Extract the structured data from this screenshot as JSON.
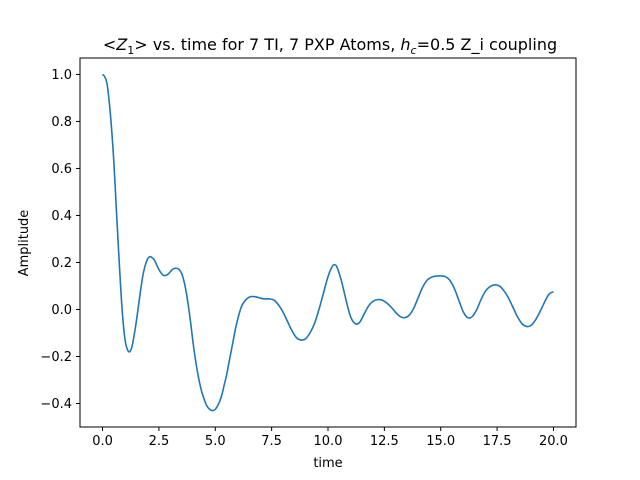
{
  "chart_data": {
    "type": "line",
    "title_parts": {
      "z_open": "<",
      "z_var": "Z",
      "z_sub": "1",
      "z_close": ">",
      "mid": " vs. time for 7 TI, 7 PXP Atoms, ",
      "h_var": "h",
      "h_sub": "c",
      "tail": "=0.5 Z_i coupling"
    },
    "xlabel": "time",
    "ylabel": "Amplitude",
    "xlim": [
      -1.0,
      21.0
    ],
    "ylim": [
      -0.5,
      1.07
    ],
    "xticks": [
      0.0,
      2.5,
      5.0,
      7.5,
      10.0,
      12.5,
      15.0,
      17.5,
      20.0
    ],
    "xtick_labels": [
      "0.0",
      "2.5",
      "5.0",
      "7.5",
      "10.0",
      "12.5",
      "15.0",
      "17.5",
      "20.0"
    ],
    "yticks": [
      -0.4,
      -0.2,
      0.0,
      0.2,
      0.4,
      0.6,
      0.8,
      1.0
    ],
    "ytick_labels": [
      "−0.4",
      "−0.2",
      "0.0",
      "0.2",
      "0.4",
      "0.6",
      "0.8",
      "1.0"
    ],
    "grid": false,
    "series": [
      {
        "color": "#1f77b4",
        "points": [
          [
            0.0,
            1.0
          ],
          [
            0.1,
            0.99
          ],
          [
            0.2,
            0.96
          ],
          [
            0.3,
            0.88
          ],
          [
            0.4,
            0.77
          ],
          [
            0.5,
            0.63
          ],
          [
            0.6,
            0.45
          ],
          [
            0.7,
            0.27
          ],
          [
            0.8,
            0.1
          ],
          [
            0.9,
            -0.04
          ],
          [
            1.0,
            -0.13
          ],
          [
            1.1,
            -0.17
          ],
          [
            1.2,
            -0.18
          ],
          [
            1.3,
            -0.16
          ],
          [
            1.4,
            -0.11
          ],
          [
            1.5,
            -0.05
          ],
          [
            1.6,
            0.02
          ],
          [
            1.7,
            0.09
          ],
          [
            1.8,
            0.15
          ],
          [
            1.9,
            0.19
          ],
          [
            2.0,
            0.215
          ],
          [
            2.1,
            0.225
          ],
          [
            2.2,
            0.22
          ],
          [
            2.3,
            0.21
          ],
          [
            2.4,
            0.19
          ],
          [
            2.5,
            0.17
          ],
          [
            2.6,
            0.155
          ],
          [
            2.7,
            0.145
          ],
          [
            2.8,
            0.145
          ],
          [
            2.9,
            0.15
          ],
          [
            3.0,
            0.16
          ],
          [
            3.1,
            0.17
          ],
          [
            3.2,
            0.175
          ],
          [
            3.3,
            0.175
          ],
          [
            3.4,
            0.17
          ],
          [
            3.5,
            0.155
          ],
          [
            3.6,
            0.125
          ],
          [
            3.7,
            0.08
          ],
          [
            3.8,
            0.02
          ],
          [
            3.9,
            -0.05
          ],
          [
            4.0,
            -0.13
          ],
          [
            4.1,
            -0.2
          ],
          [
            4.2,
            -0.26
          ],
          [
            4.3,
            -0.31
          ],
          [
            4.4,
            -0.35
          ],
          [
            4.5,
            -0.38
          ],
          [
            4.6,
            -0.405
          ],
          [
            4.7,
            -0.42
          ],
          [
            4.8,
            -0.428
          ],
          [
            4.9,
            -0.43
          ],
          [
            5.0,
            -0.425
          ],
          [
            5.1,
            -0.41
          ],
          [
            5.2,
            -0.39
          ],
          [
            5.3,
            -0.36
          ],
          [
            5.4,
            -0.32
          ],
          [
            5.5,
            -0.28
          ],
          [
            5.6,
            -0.23
          ],
          [
            5.7,
            -0.18
          ],
          [
            5.8,
            -0.13
          ],
          [
            5.9,
            -0.08
          ],
          [
            6.0,
            -0.04
          ],
          [
            6.1,
            -0.005
          ],
          [
            6.2,
            0.02
          ],
          [
            6.3,
            0.035
          ],
          [
            6.4,
            0.045
          ],
          [
            6.5,
            0.052
          ],
          [
            6.6,
            0.055
          ],
          [
            6.8,
            0.054
          ],
          [
            7.0,
            0.048
          ],
          [
            7.2,
            0.045
          ],
          [
            7.4,
            0.045
          ],
          [
            7.6,
            0.04
          ],
          [
            7.8,
            0.02
          ],
          [
            8.0,
            -0.01
          ],
          [
            8.2,
            -0.05
          ],
          [
            8.4,
            -0.09
          ],
          [
            8.6,
            -0.12
          ],
          [
            8.8,
            -0.13
          ],
          [
            9.0,
            -0.125
          ],
          [
            9.2,
            -0.1
          ],
          [
            9.4,
            -0.06
          ],
          [
            9.6,
            0.0
          ],
          [
            9.8,
            0.07
          ],
          [
            10.0,
            0.14
          ],
          [
            10.2,
            0.185
          ],
          [
            10.3,
            0.19
          ],
          [
            10.4,
            0.18
          ],
          [
            10.6,
            0.12
          ],
          [
            10.8,
            0.04
          ],
          [
            11.0,
            -0.03
          ],
          [
            11.2,
            -0.06
          ],
          [
            11.4,
            -0.055
          ],
          [
            11.6,
            -0.02
          ],
          [
            11.8,
            0.015
          ],
          [
            12.0,
            0.035
          ],
          [
            12.2,
            0.042
          ],
          [
            12.4,
            0.04
          ],
          [
            12.6,
            0.028
          ],
          [
            12.8,
            0.01
          ],
          [
            13.0,
            -0.012
          ],
          [
            13.2,
            -0.03
          ],
          [
            13.4,
            -0.035
          ],
          [
            13.6,
            -0.025
          ],
          [
            13.8,
            0.005
          ],
          [
            14.0,
            0.05
          ],
          [
            14.2,
            0.095
          ],
          [
            14.4,
            0.125
          ],
          [
            14.6,
            0.138
          ],
          [
            14.8,
            0.142
          ],
          [
            15.0,
            0.143
          ],
          [
            15.2,
            0.14
          ],
          [
            15.4,
            0.125
          ],
          [
            15.6,
            0.09
          ],
          [
            15.8,
            0.04
          ],
          [
            16.0,
            -0.01
          ],
          [
            16.2,
            -0.035
          ],
          [
            16.4,
            -0.03
          ],
          [
            16.6,
            0.0
          ],
          [
            16.8,
            0.045
          ],
          [
            17.0,
            0.08
          ],
          [
            17.2,
            0.098
          ],
          [
            17.4,
            0.105
          ],
          [
            17.6,
            0.1
          ],
          [
            17.8,
            0.08
          ],
          [
            18.0,
            0.05
          ],
          [
            18.2,
            0.01
          ],
          [
            18.4,
            -0.03
          ],
          [
            18.6,
            -0.06
          ],
          [
            18.8,
            -0.072
          ],
          [
            19.0,
            -0.068
          ],
          [
            19.2,
            -0.045
          ],
          [
            19.4,
            -0.01
          ],
          [
            19.6,
            0.03
          ],
          [
            19.8,
            0.065
          ],
          [
            20.0,
            0.075
          ]
        ]
      }
    ]
  }
}
